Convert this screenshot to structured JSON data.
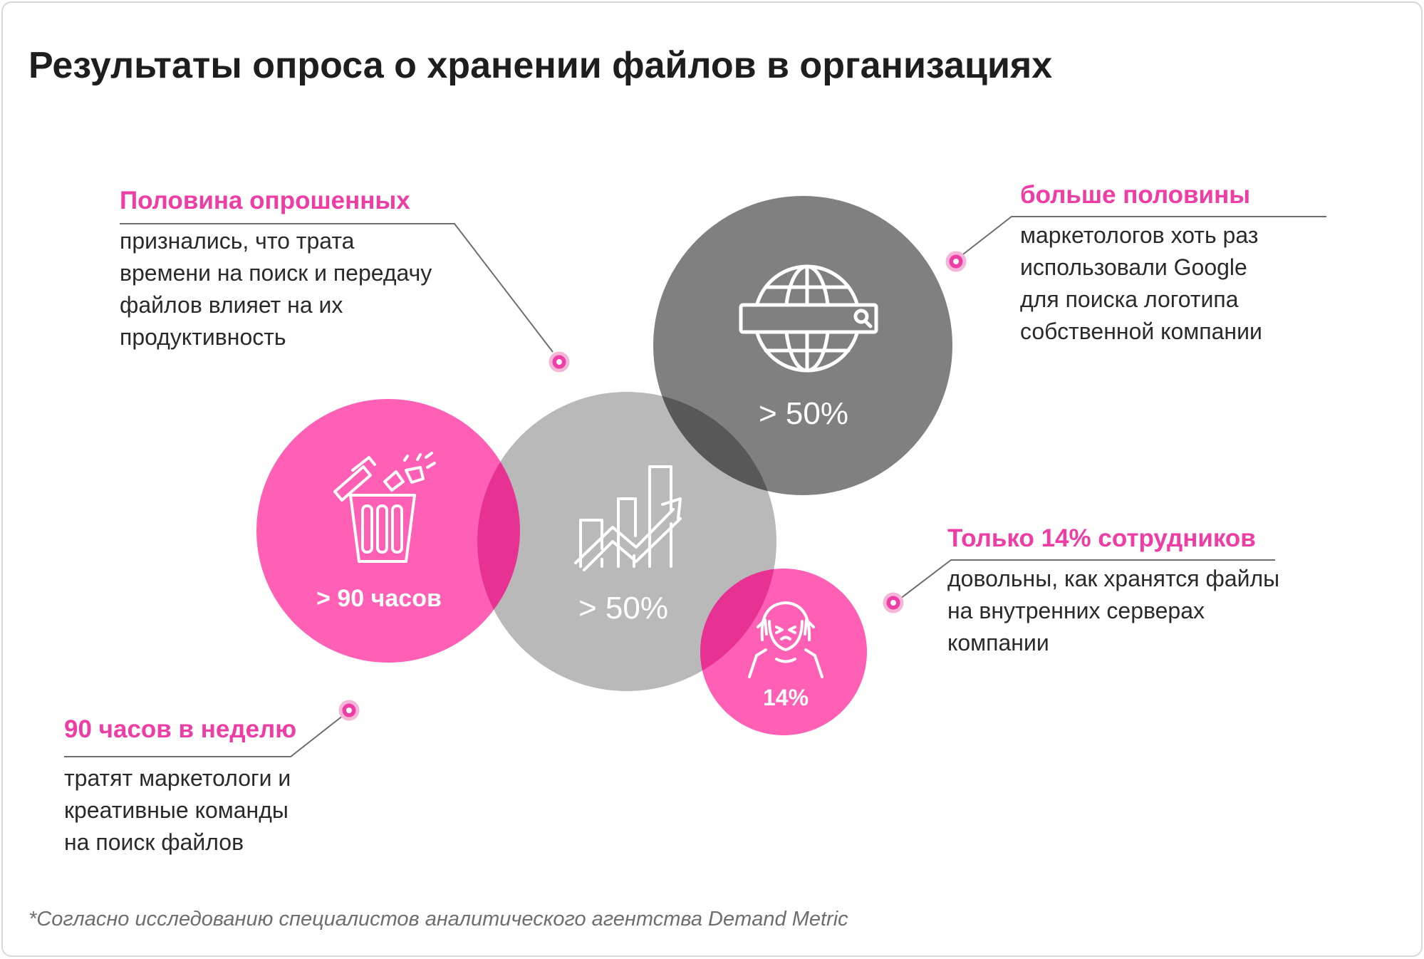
{
  "title": "Результаты опроса о хранении файлов в организациях",
  "colors": {
    "accent": "#ee3da4",
    "pink_circle": "#ff5fb4",
    "light_gray_circle": "#b9b9b9",
    "dark_gray_circle": "#808080",
    "overlap_pink": "#e83293",
    "overlap_dark": "#585858"
  },
  "circles": [
    {
      "id": "hours",
      "label": "> 90 часов",
      "icon": "trash-bin-icon"
    },
    {
      "id": "productivity",
      "label": "> 50%",
      "icon": "growth-chart-icon"
    },
    {
      "id": "google",
      "label": "> 50%",
      "icon": "globe-search-icon"
    },
    {
      "id": "satisfaction",
      "label": "14%",
      "icon": "stressed-person-icon"
    }
  ],
  "callouts": {
    "half": {
      "heading": "Половина опрошенных",
      "lines": [
        "признались, что трата",
        "времени на поиск и передачу",
        "файлов влияет на их",
        "продуктивность"
      ]
    },
    "more_half": {
      "heading": "больше половины",
      "lines": [
        "маркетологов хоть раз",
        "использовали Google",
        "для поиска логотипа",
        "собственной компании"
      ]
    },
    "only14": {
      "heading": "Только 14% сотрудников",
      "lines": [
        "довольны, как хранятся файлы",
        "на внутренних серверах",
        "компании"
      ]
    },
    "hours90": {
      "heading": "90 часов в неделю",
      "lines": [
        "тратят маркетологи и",
        "креативные команды",
        "на поиск файлов"
      ]
    }
  },
  "footnote": "*Согласно исследованию специалистов аналитического агентства Demand Metric"
}
